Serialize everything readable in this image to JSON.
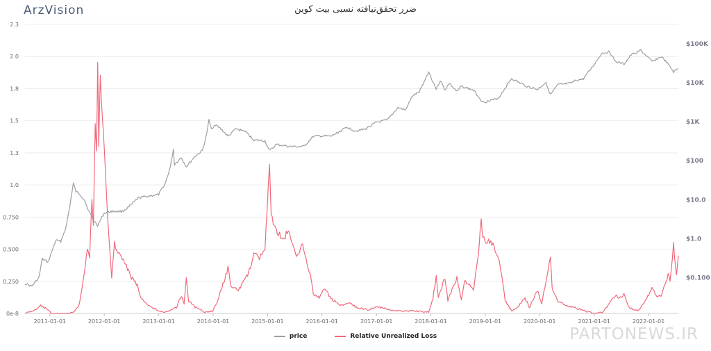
{
  "logo_text": "ArzVision",
  "watermark_text": "PARTONEWS.IR",
  "chart_data": {
    "type": "line",
    "title": "ضرر تحقق‌نیافته نسبی بیت کوین",
    "grid": true,
    "legend_position": "bottom-center",
    "left_axis": {
      "ticks": [
        {
          "value": 0,
          "label": "0e-8"
        },
        {
          "value": 0.25,
          "label": "0.250"
        },
        {
          "value": 0.5,
          "label": "0.500"
        },
        {
          "value": 0.75,
          "label": "0.750"
        },
        {
          "value": 1.0,
          "label": "1.0"
        },
        {
          "value": 1.25,
          "label": "1.3"
        },
        {
          "value": 1.5,
          "label": "1.5"
        },
        {
          "value": 1.75,
          "label": "1.8"
        },
        {
          "value": 2.0,
          "label": "2.0"
        },
        {
          "value": 2.25,
          "label": "2.3"
        }
      ],
      "ylim": [
        0,
        2.25
      ]
    },
    "right_axis": {
      "scale": "log",
      "ticks": [
        {
          "value": 0.1,
          "label": "$0.100"
        },
        {
          "value": 1,
          "label": "$1.0"
        },
        {
          "value": 10,
          "label": "$10.0"
        },
        {
          "value": 100,
          "label": "$100"
        },
        {
          "value": 1000,
          "label": "$1K"
        },
        {
          "value": 10000,
          "label": "$10K"
        },
        {
          "value": 100000,
          "label": "$100K"
        }
      ],
      "ylim": [
        0.012,
        316000
      ]
    },
    "x_axis": {
      "type": "date",
      "range": [
        "2010-07-18",
        "2022-07-20"
      ],
      "ticks": [
        "2011-01-01",
        "2012-01-01",
        "2013-01-01",
        "2014-01-01",
        "2015-01-01",
        "2016-01-01",
        "2017-01-01",
        "2018-01-01",
        "2019-01-01",
        "2020-01-01",
        "2021-01-01",
        "2022-01-01"
      ]
    },
    "series": [
      {
        "name": "price",
        "axis": "right",
        "color": "#9e9e9e",
        "points": [
          [
            "2010-07-18",
            0.07
          ],
          [
            "2010-09-01",
            0.06
          ],
          [
            "2010-10-20",
            0.1
          ],
          [
            "2010-11-10",
            0.3
          ],
          [
            "2010-12-20",
            0.25
          ],
          [
            "2011-02-10",
            0.9
          ],
          [
            "2011-03-15",
            0.85
          ],
          [
            "2011-04-20",
            2.0
          ],
          [
            "2011-05-15",
            7.0
          ],
          [
            "2011-06-08",
            26
          ],
          [
            "2011-06-25",
            16
          ],
          [
            "2011-07-20",
            14
          ],
          [
            "2011-08-20",
            10
          ],
          [
            "2011-09-20",
            5
          ],
          [
            "2011-10-20",
            3
          ],
          [
            "2011-11-18",
            2.2
          ],
          [
            "2011-12-31",
            4.5
          ],
          [
            "2012-02-15",
            5.0
          ],
          [
            "2012-05-01",
            5.0
          ],
          [
            "2012-06-15",
            6.5
          ],
          [
            "2012-08-15",
            11
          ],
          [
            "2012-10-01",
            12
          ],
          [
            "2012-12-31",
            13.5
          ],
          [
            "2013-02-15",
            27
          ],
          [
            "2013-03-20",
            70
          ],
          [
            "2013-04-09",
            200
          ],
          [
            "2013-04-16",
            80
          ],
          [
            "2013-06-01",
            120
          ],
          [
            "2013-07-05",
            70
          ],
          [
            "2013-09-01",
            130
          ],
          [
            "2013-10-20",
            180
          ],
          [
            "2013-11-15",
            420
          ],
          [
            "2013-12-04",
            1100
          ],
          [
            "2013-12-20",
            650
          ],
          [
            "2014-01-15",
            850
          ],
          [
            "2014-03-01",
            620
          ],
          [
            "2014-04-10",
            420
          ],
          [
            "2014-06-01",
            650
          ],
          [
            "2014-08-01",
            580
          ],
          [
            "2014-10-01",
            340
          ],
          [
            "2014-12-15",
            320
          ],
          [
            "2015-01-14",
            180
          ],
          [
            "2015-03-01",
            260
          ],
          [
            "2015-06-01",
            230
          ],
          [
            "2015-09-01",
            230
          ],
          [
            "2015-11-04",
            420
          ],
          [
            "2015-12-31",
            430
          ],
          [
            "2016-03-01",
            420
          ],
          [
            "2016-06-18",
            720
          ],
          [
            "2016-08-10",
            580
          ],
          [
            "2016-10-15",
            640
          ],
          [
            "2016-12-31",
            960
          ],
          [
            "2017-03-15",
            1100
          ],
          [
            "2017-05-25",
            2300
          ],
          [
            "2017-07-15",
            2000
          ],
          [
            "2017-09-01",
            4700
          ],
          [
            "2017-10-15",
            5700
          ],
          [
            "2017-12-17",
            19000
          ],
          [
            "2018-02-06",
            6900
          ],
          [
            "2018-03-05",
            11500
          ],
          [
            "2018-04-06",
            6600
          ],
          [
            "2018-05-05",
            9700
          ],
          [
            "2018-06-25",
            5900
          ],
          [
            "2018-07-25",
            8200
          ],
          [
            "2018-10-15",
            6400
          ],
          [
            "2018-12-15",
            3200
          ],
          [
            "2019-02-01",
            3400
          ],
          [
            "2019-04-01",
            4100
          ],
          [
            "2019-06-26",
            12900
          ],
          [
            "2019-08-15",
            10200
          ],
          [
            "2019-10-01",
            8300
          ],
          [
            "2019-12-17",
            6700
          ],
          [
            "2020-02-13",
            10300
          ],
          [
            "2020-03-13",
            4900
          ],
          [
            "2020-05-01",
            8800
          ],
          [
            "2020-07-25",
            9600
          ],
          [
            "2020-09-01",
            11500
          ],
          [
            "2020-10-20",
            12500
          ],
          [
            "2020-12-31",
            29000
          ],
          [
            "2021-02-20",
            57000
          ],
          [
            "2021-04-14",
            63000
          ],
          [
            "2021-05-23",
            35000
          ],
          [
            "2021-07-20",
            30000
          ],
          [
            "2021-09-06",
            52000
          ],
          [
            "2021-11-10",
            68000
          ],
          [
            "2022-01-24",
            35000
          ],
          [
            "2022-03-29",
            47000
          ],
          [
            "2022-05-15",
            29000
          ],
          [
            "2022-06-18",
            19000
          ],
          [
            "2022-07-20",
            23000
          ]
        ]
      },
      {
        "name": "Relative Unrealized Loss",
        "axis": "left",
        "color": "#f0687a",
        "points": [
          [
            "2010-07-18",
            0.0
          ],
          [
            "2010-10-01",
            0.03
          ],
          [
            "2010-11-01",
            0.06
          ],
          [
            "2010-12-01",
            0.04
          ],
          [
            "2011-01-15",
            0.0
          ],
          [
            "2011-05-15",
            0.0
          ],
          [
            "2011-06-20",
            0.02
          ],
          [
            "2011-07-15",
            0.06
          ],
          [
            "2011-08-20",
            0.3
          ],
          [
            "2011-09-10",
            0.52
          ],
          [
            "2011-09-25",
            0.42
          ],
          [
            "2011-10-10",
            0.9
          ],
          [
            "2011-10-20",
            0.7
          ],
          [
            "2011-11-01",
            1.5
          ],
          [
            "2011-11-10",
            1.25
          ],
          [
            "2011-11-18",
            1.95
          ],
          [
            "2011-11-25",
            1.3
          ],
          [
            "2011-12-05",
            1.85
          ],
          [
            "2011-12-20",
            1.5
          ],
          [
            "2012-01-10",
            1.1
          ],
          [
            "2012-01-25",
            0.7
          ],
          [
            "2012-02-10",
            0.45
          ],
          [
            "2012-02-20",
            0.28
          ],
          [
            "2012-03-10",
            0.55
          ],
          [
            "2012-04-01",
            0.48
          ],
          [
            "2012-05-15",
            0.4
          ],
          [
            "2012-07-01",
            0.28
          ],
          [
            "2012-08-10",
            0.22
          ],
          [
            "2012-09-01",
            0.12
          ],
          [
            "2012-10-01",
            0.08
          ],
          [
            "2012-11-15",
            0.05
          ],
          [
            "2013-01-01",
            0.02
          ],
          [
            "2013-03-01",
            0.01
          ],
          [
            "2013-05-01",
            0.05
          ],
          [
            "2013-06-01",
            0.14
          ],
          [
            "2013-06-20",
            0.08
          ],
          [
            "2013-07-05",
            0.28
          ],
          [
            "2013-07-20",
            0.1
          ],
          [
            "2013-09-01",
            0.05
          ],
          [
            "2013-11-01",
            0.01
          ],
          [
            "2013-12-31",
            0.02
          ],
          [
            "2014-02-01",
            0.1
          ],
          [
            "2014-03-01",
            0.2
          ],
          [
            "2014-04-10",
            0.35
          ],
          [
            "2014-05-01",
            0.22
          ],
          [
            "2014-06-20",
            0.18
          ],
          [
            "2014-08-20",
            0.3
          ],
          [
            "2014-09-15",
            0.38
          ],
          [
            "2014-10-01",
            0.48
          ],
          [
            "2014-11-01",
            0.42
          ],
          [
            "2014-12-15",
            0.5
          ],
          [
            "2015-01-14",
            1.15
          ],
          [
            "2015-01-25",
            0.8
          ],
          [
            "2015-02-15",
            0.68
          ],
          [
            "2015-03-15",
            0.62
          ],
          [
            "2015-04-15",
            0.58
          ],
          [
            "2015-05-20",
            0.64
          ],
          [
            "2015-06-20",
            0.52
          ],
          [
            "2015-07-15",
            0.45
          ],
          [
            "2015-08-24",
            0.55
          ],
          [
            "2015-09-15",
            0.42
          ],
          [
            "2015-10-15",
            0.3
          ],
          [
            "2015-11-04",
            0.15
          ],
          [
            "2015-12-15",
            0.12
          ],
          [
            "2016-01-15",
            0.2
          ],
          [
            "2016-03-01",
            0.12
          ],
          [
            "2016-05-01",
            0.06
          ],
          [
            "2016-07-01",
            0.08
          ],
          [
            "2016-09-01",
            0.04
          ],
          [
            "2016-11-01",
            0.03
          ],
          [
            "2017-01-15",
            0.05
          ],
          [
            "2017-03-25",
            0.03
          ],
          [
            "2017-06-01",
            0.02
          ],
          [
            "2017-09-15",
            0.02
          ],
          [
            "2017-12-17",
            0.01
          ],
          [
            "2018-01-15",
            0.12
          ],
          [
            "2018-02-06",
            0.28
          ],
          [
            "2018-02-20",
            0.12
          ],
          [
            "2018-04-06",
            0.28
          ],
          [
            "2018-04-25",
            0.1
          ],
          [
            "2018-06-25",
            0.28
          ],
          [
            "2018-07-25",
            0.1
          ],
          [
            "2018-08-15",
            0.26
          ],
          [
            "2018-10-15",
            0.18
          ],
          [
            "2018-11-15",
            0.45
          ],
          [
            "2018-12-05",
            0.75
          ],
          [
            "2018-12-15",
            0.6
          ],
          [
            "2019-01-15",
            0.56
          ],
          [
            "2019-02-15",
            0.55
          ],
          [
            "2019-03-15",
            0.48
          ],
          [
            "2019-04-15",
            0.35
          ],
          [
            "2019-05-15",
            0.1
          ],
          [
            "2019-06-26",
            0.02
          ],
          [
            "2019-08-01",
            0.04
          ],
          [
            "2019-09-25",
            0.12
          ],
          [
            "2019-10-25",
            0.05
          ],
          [
            "2019-12-17",
            0.18
          ],
          [
            "2020-01-15",
            0.08
          ],
          [
            "2020-03-13",
            0.44
          ],
          [
            "2020-03-25",
            0.2
          ],
          [
            "2020-05-01",
            0.1
          ],
          [
            "2020-07-01",
            0.06
          ],
          [
            "2020-09-10",
            0.04
          ],
          [
            "2020-11-01",
            0.02
          ],
          [
            "2020-12-31",
            0.0
          ],
          [
            "2021-03-01",
            0.01
          ],
          [
            "2021-05-23",
            0.14
          ],
          [
            "2021-06-22",
            0.12
          ],
          [
            "2021-07-20",
            0.15
          ],
          [
            "2021-08-20",
            0.05
          ],
          [
            "2021-10-20",
            0.02
          ],
          [
            "2021-12-04",
            0.08
          ],
          [
            "2022-01-24",
            0.2
          ],
          [
            "2022-03-01",
            0.12
          ],
          [
            "2022-04-01",
            0.15
          ],
          [
            "2022-05-12",
            0.3
          ],
          [
            "2022-05-25",
            0.26
          ],
          [
            "2022-06-18",
            0.54
          ],
          [
            "2022-06-28",
            0.4
          ],
          [
            "2022-07-08",
            0.3
          ],
          [
            "2022-07-20",
            0.45
          ]
        ]
      }
    ]
  }
}
